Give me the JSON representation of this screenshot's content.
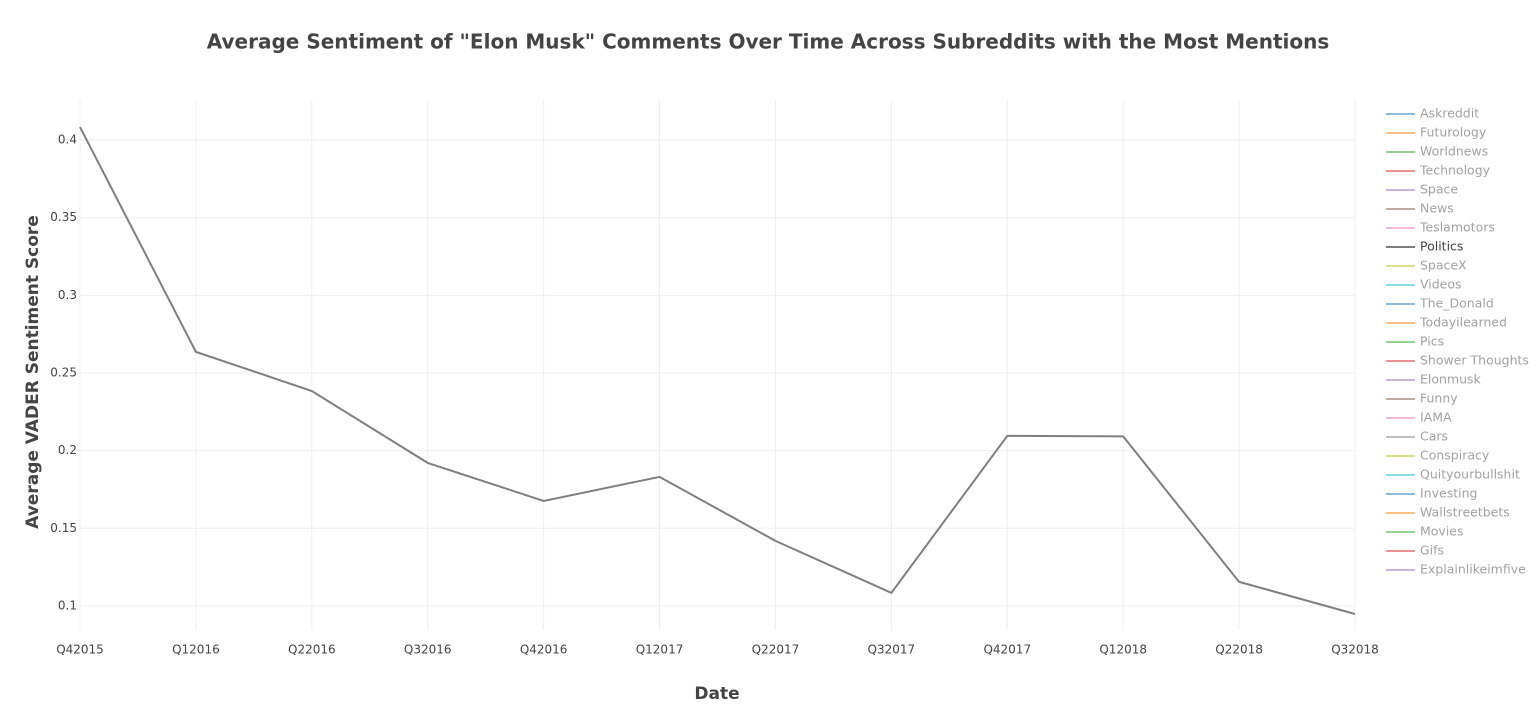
{
  "chart_data": {
    "type": "line",
    "title": "Average Sentiment of \"Elon Musk\" Comments Over Time Across Subreddits with the Most Mentions",
    "x_label": "Date",
    "y_label": "Average VADER Sentiment Score",
    "categories": [
      "Q42015",
      "Q12016",
      "Q22016",
      "Q32016",
      "Q42016",
      "Q12017",
      "Q22017",
      "Q32017",
      "Q42017",
      "Q12018",
      "Q22018",
      "Q32018"
    ],
    "ylim": [
      0.0845,
      0.4258
    ],
    "yticks": [
      0.1,
      0.15,
      0.2,
      0.25,
      0.3,
      0.35,
      0.4
    ],
    "grid": true,
    "legend": "right",
    "series": [
      {
        "name": "Askreddit",
        "color": "#1f77b4",
        "visible": false
      },
      {
        "name": "Futurology",
        "color": "#ff7f0e",
        "visible": false
      },
      {
        "name": "Worldnews",
        "color": "#2ca02c",
        "visible": false
      },
      {
        "name": "Technology",
        "color": "#d62728",
        "visible": false
      },
      {
        "name": "Space",
        "color": "#9467bd",
        "visible": false
      },
      {
        "name": "News",
        "color": "#8c564b",
        "visible": false
      },
      {
        "name": "Teslamotors",
        "color": "#e377c2",
        "visible": false
      },
      {
        "name": "Politics",
        "color": "#7f7f7f",
        "visible": true,
        "values": [
          0.4084,
          0.2636,
          0.2384,
          0.1921,
          0.1676,
          0.1831,
          0.1419,
          0.1084,
          0.2095,
          0.2092,
          0.1155,
          0.0948
        ]
      },
      {
        "name": "SpaceX",
        "color": "#bcbd22",
        "visible": false
      },
      {
        "name": "Videos",
        "color": "#17becf",
        "visible": false
      },
      {
        "name": "The_Donald",
        "color": "#1f77b4",
        "visible": false
      },
      {
        "name": "Todayilearned",
        "color": "#ff7f0e",
        "visible": false
      },
      {
        "name": "Pics",
        "color": "#2ca02c",
        "visible": false
      },
      {
        "name": "Shower Thoughts",
        "color": "#d62728",
        "visible": false
      },
      {
        "name": "Elonmusk",
        "color": "#9467bd",
        "visible": false
      },
      {
        "name": "Funny",
        "color": "#8c564b",
        "visible": false
      },
      {
        "name": "IAMA",
        "color": "#e377c2",
        "visible": false
      },
      {
        "name": "Cars",
        "color": "#7f7f7f",
        "visible": false
      },
      {
        "name": "Conspiracy",
        "color": "#bcbd22",
        "visible": false
      },
      {
        "name": "Quityourbullshit",
        "color": "#17becf",
        "visible": false
      },
      {
        "name": "Investing",
        "color": "#1f77b4",
        "visible": false
      },
      {
        "name": "Wallstreetbets",
        "color": "#ff7f0e",
        "visible": false
      },
      {
        "name": "Movies",
        "color": "#2ca02c",
        "visible": false
      },
      {
        "name": "Gifs",
        "color": "#d62728",
        "visible": false
      },
      {
        "name": "Explainlikeimfive",
        "color": "#9467bd",
        "visible": false
      }
    ]
  }
}
